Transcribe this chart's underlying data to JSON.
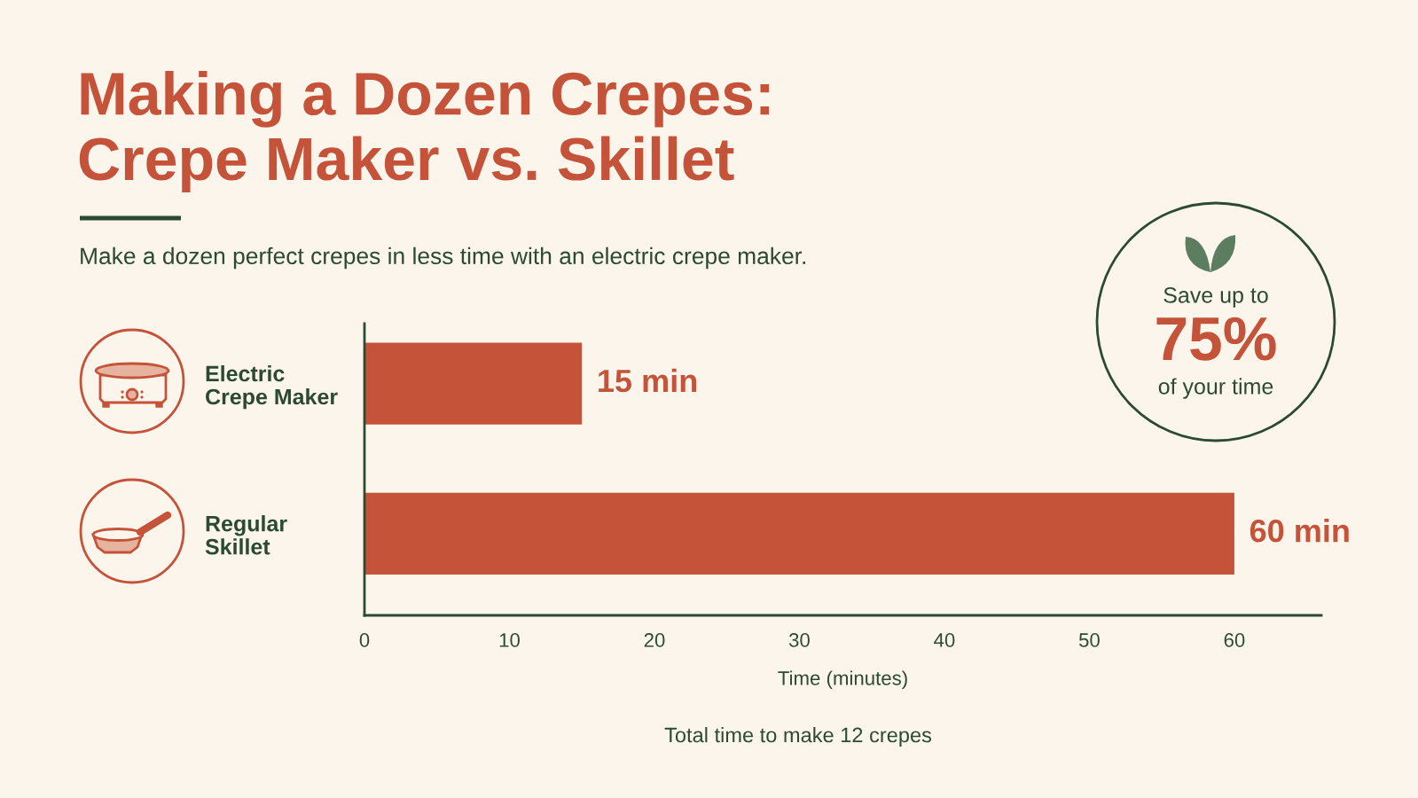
{
  "chart_data": {
    "type": "bar",
    "orientation": "horizontal",
    "title": "Making a Dozen Crepes:\nCrepe Maker vs. Skillet",
    "subtitle": "Make a dozen perfect crepes in less time with an electric crepe maker.",
    "categories": [
      "Electric\nCrepe Maker",
      "Regular\nSkillet"
    ],
    "values": [
      15,
      60
    ],
    "color": "#c4533a",
    "value_labels": [
      "15 min",
      "60 min"
    ],
    "xlabel": "Time (minutes)",
    "xlim": [
      0,
      66
    ],
    "xticks": [
      0,
      10,
      20,
      30,
      40,
      50,
      60
    ],
    "grid": false,
    "annotations": [
      "Save up to",
      "75%",
      "of your time",
      "Total time to make 12 crepes"
    ]
  }
}
